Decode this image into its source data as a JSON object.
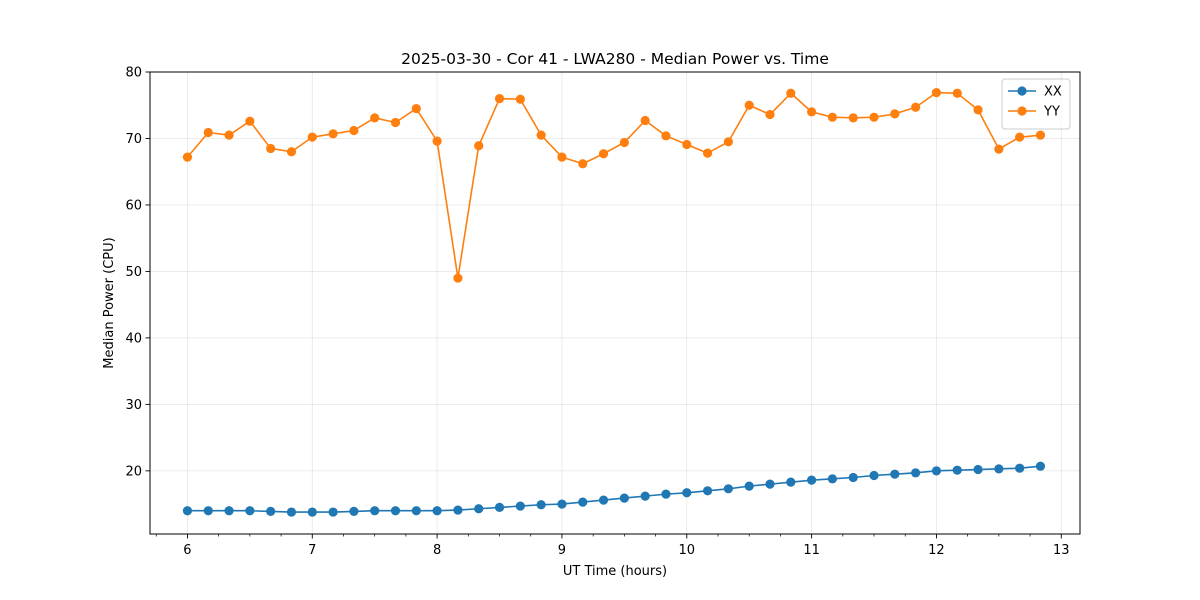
{
  "chart_data": {
    "type": "line",
    "title": "2025-03-30 - Cor 41 - LWA280 - Median Power vs. Time",
    "xlabel": "UT Time (hours)",
    "ylabel": "Median Power (CPU)",
    "xlim": [
      5.7,
      13.15
    ],
    "ylim": [
      10.5,
      80
    ],
    "x_ticks": [
      6,
      7,
      8,
      9,
      10,
      11,
      12,
      13
    ],
    "y_ticks": [
      20,
      30,
      40,
      50,
      60,
      70,
      80
    ],
    "grid": true,
    "legend_position": "top-right",
    "x": [
      6.0,
      6.1667,
      6.3333,
      6.5,
      6.6667,
      6.8333,
      7.0,
      7.1667,
      7.3333,
      7.5,
      7.6667,
      7.8333,
      8.0,
      8.1667,
      8.3333,
      8.5,
      8.6667,
      8.8333,
      9.0,
      9.1667,
      9.3333,
      9.5,
      9.6667,
      9.8333,
      10.0,
      10.1667,
      10.3333,
      10.5,
      10.6667,
      10.8333,
      11.0,
      11.1667,
      11.3333,
      11.5,
      11.6667,
      11.8333,
      12.0,
      12.1667,
      12.3333,
      12.5,
      12.6667,
      12.8333
    ],
    "series": [
      {
        "name": "XX",
        "color": "#1f77b4",
        "values": [
          14.0,
          14.0,
          14.0,
          14.0,
          13.9,
          13.8,
          13.8,
          13.8,
          13.9,
          14.0,
          14.0,
          14.0,
          14.0,
          14.1,
          14.3,
          14.5,
          14.7,
          14.9,
          15.0,
          15.3,
          15.6,
          15.9,
          16.2,
          16.5,
          16.7,
          17.0,
          17.3,
          17.7,
          18.0,
          18.3,
          18.6,
          18.8,
          19.0,
          19.3,
          19.5,
          19.7,
          20.0,
          20.1,
          20.2,
          20.3,
          20.4,
          20.7
        ]
      },
      {
        "name": "YY",
        "color": "#ff7f0e",
        "values": [
          67.2,
          70.9,
          70.5,
          72.6,
          68.5,
          68.0,
          70.2,
          70.7,
          71.2,
          73.1,
          72.4,
          74.5,
          69.6,
          49.0,
          68.9,
          76.0,
          75.9,
          70.5,
          67.2,
          66.2,
          67.7,
          69.4,
          72.7,
          70.4,
          69.1,
          67.8,
          69.5,
          75.0,
          73.6,
          76.8,
          74.0,
          73.2,
          73.1,
          73.2,
          73.7,
          74.7,
          76.9,
          76.8,
          74.3,
          68.4,
          70.2,
          70.5
        ]
      }
    ]
  }
}
